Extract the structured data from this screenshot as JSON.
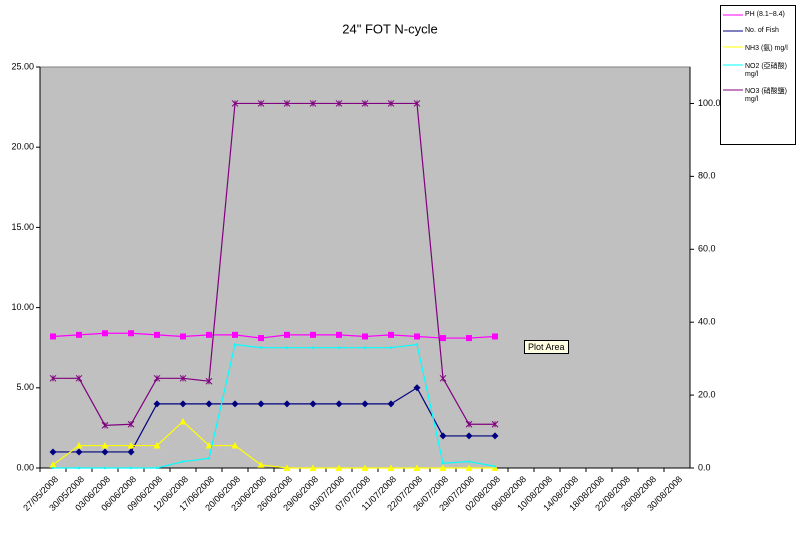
{
  "chart_data": {
    "type": "line",
    "title": "24\" FOT N-cycle",
    "categories": [
      "27/05/2008",
      "30/05/2008",
      "03/06/2008",
      "06/06/2008",
      "09/06/2008",
      "12/06/2008",
      "17/06/2008",
      "20/06/2008",
      "23/06/2008",
      "26/06/2008",
      "29/06/2008",
      "03/07/2008",
      "07/07/2008",
      "11/07/2008",
      "22/07/2008",
      "26/07/2008",
      "29/07/2008",
      "02/08/2008",
      "06/08/2008",
      "10/08/2008",
      "14/08/2008",
      "18/08/2008",
      "22/08/2008",
      "26/08/2008",
      "30/08/2008"
    ],
    "series": [
      {
        "name": "PH (8.1~8.4)",
        "color": "#ff00ff",
        "marker": "square",
        "values": [
          8.2,
          8.3,
          8.4,
          8.4,
          8.3,
          8.2,
          8.3,
          8.3,
          8.1,
          8.3,
          8.3,
          8.3,
          8.2,
          8.3,
          8.2,
          8.1,
          8.1,
          8.2,
          null,
          null,
          null,
          null,
          null,
          null,
          null
        ]
      },
      {
        "name": "No. of Fish",
        "color": "#000080",
        "marker": "diamond",
        "values": [
          1,
          1,
          1,
          1,
          4,
          4,
          4,
          4,
          4,
          4,
          4,
          4,
          4,
          4,
          5,
          2,
          2,
          2,
          null,
          null,
          null,
          null,
          null,
          null,
          null
        ]
      },
      {
        "name": "NH3 (氨) mg/l",
        "color": "#ffff00",
        "marker": "triangle",
        "values": [
          0.2,
          1.4,
          1.4,
          1.4,
          1.4,
          2.9,
          1.4,
          1.4,
          0.2,
          0,
          0,
          0,
          0,
          0,
          0,
          0,
          0,
          0,
          null,
          null,
          null,
          null,
          null,
          null,
          null
        ]
      },
      {
        "name": "NO2 (亞硝酸) mg/l",
        "color": "#00ffff",
        "marker": "dot",
        "values": [
          0,
          0,
          0,
          0,
          0,
          0.4,
          0.6,
          7.7,
          7.5,
          7.5,
          7.5,
          7.5,
          7.5,
          7.5,
          7.7,
          0.3,
          0.4,
          0.1,
          null,
          null,
          null,
          null,
          null,
          null,
          null
        ]
      },
      {
        "name": "NO3 (硝酸鹽) mg/l",
        "color": "#800080",
        "marker": "star",
        "axis": "y2",
        "values": [
          24.6,
          24.6,
          11.7,
          12,
          24.6,
          24.6,
          23.8,
          100,
          100,
          100,
          100,
          100,
          100,
          100,
          100,
          24.6,
          12,
          12,
          null,
          null,
          null,
          null,
          null,
          null,
          null
        ]
      }
    ],
    "ylim": [
      0,
      25
    ],
    "yticks": [
      {
        "value": 0,
        "label": "0.00"
      },
      {
        "value": 5,
        "label": "5.00"
      },
      {
        "value": 10,
        "label": "10.00"
      },
      {
        "value": 15,
        "label": "15.00"
      },
      {
        "value": 20,
        "label": "20.00"
      },
      {
        "value": 25,
        "label": "25.00"
      }
    ],
    "y2lim": [
      0,
      110
    ],
    "y2ticks": [
      {
        "value": 0,
        "label": "0.0"
      },
      {
        "value": 20,
        "label": "20.0"
      },
      {
        "value": 40,
        "label": "40.0"
      },
      {
        "value": 60,
        "label": "60.0"
      },
      {
        "value": 80,
        "label": "80.0"
      },
      {
        "value": 100,
        "label": "100.0"
      }
    ],
    "annotation": "Plot Area"
  }
}
